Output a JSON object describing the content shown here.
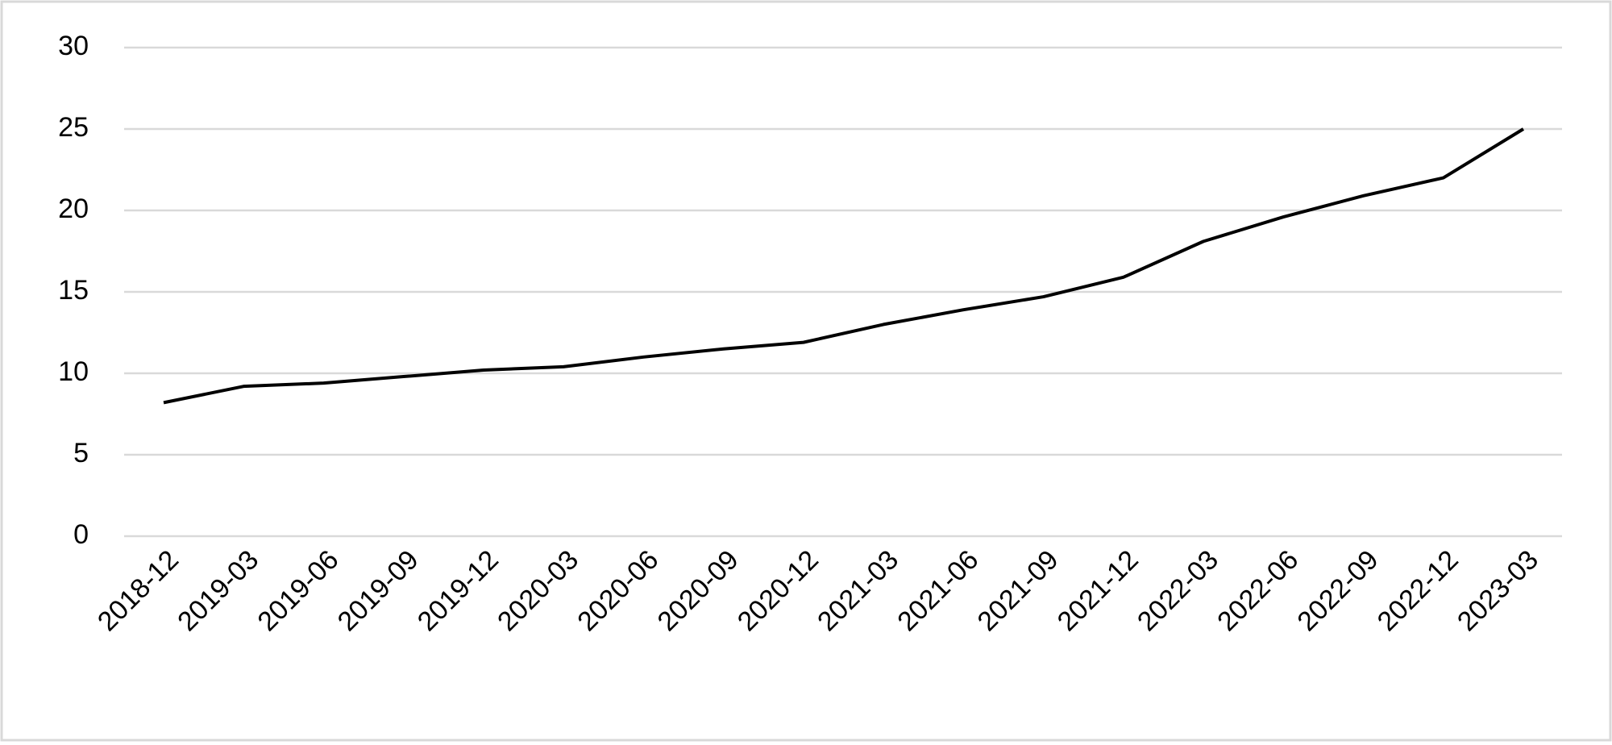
{
  "chart_data": {
    "type": "line",
    "categories": [
      "2018-12",
      "2019-03",
      "2019-06",
      "2019-09",
      "2019-12",
      "2020-03",
      "2020-06",
      "2020-09",
      "2020-12",
      "2021-03",
      "2021-06",
      "2021-09",
      "2021-12",
      "2022-03",
      "2022-06",
      "2022-09",
      "2022-12",
      "2023-03"
    ],
    "values": [
      8.2,
      9.2,
      9.4,
      9.8,
      10.2,
      10.4,
      11.0,
      11.5,
      11.9,
      13.0,
      13.9,
      14.7,
      15.9,
      18.1,
      19.6,
      20.9,
      22.0,
      25.0
    ],
    "color": "#000000",
    "ylim": [
      0,
      30
    ],
    "yticks": [
      0,
      5,
      10,
      15,
      20,
      25,
      30
    ],
    "grid": true
  }
}
